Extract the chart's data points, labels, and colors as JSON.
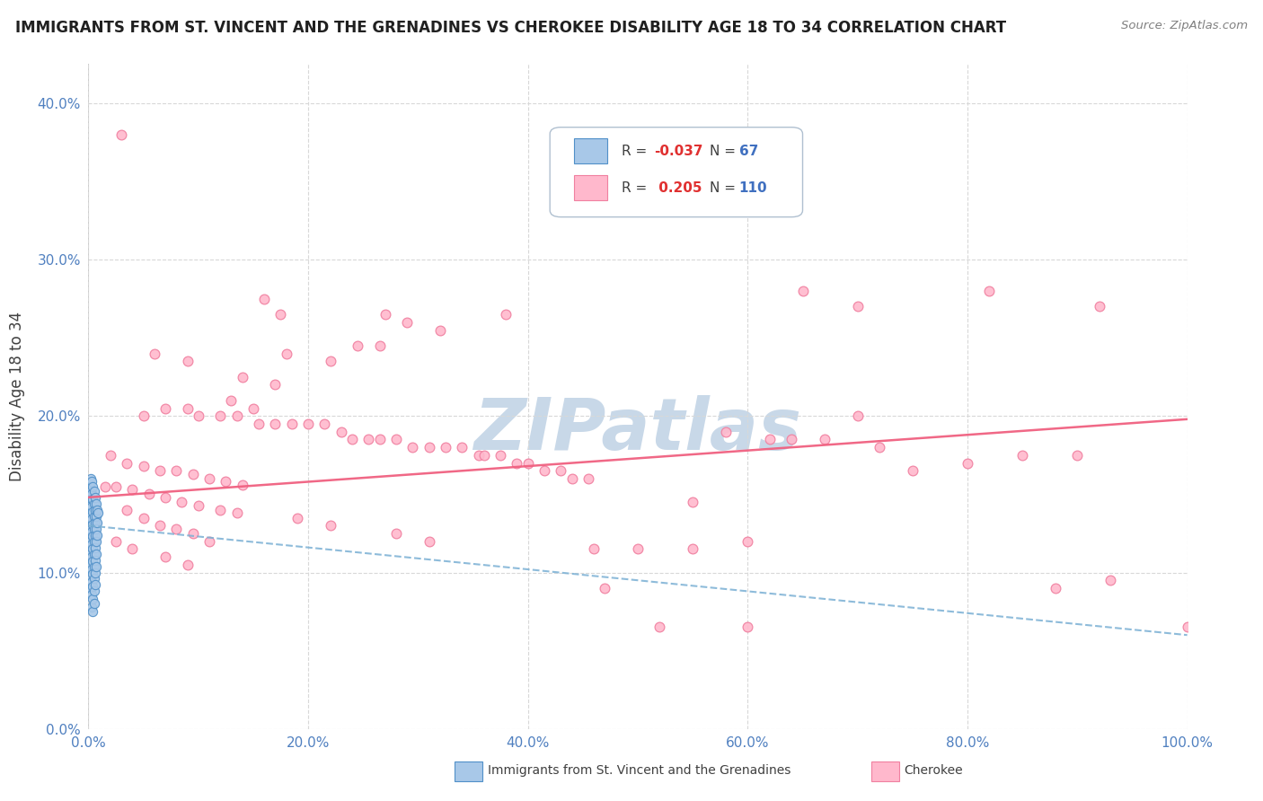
{
  "title": "IMMIGRANTS FROM ST. VINCENT AND THE GRENADINES VS CHEROKEE DISABILITY AGE 18 TO 34 CORRELATION CHART",
  "source": "Source: ZipAtlas.com",
  "ylabel": "Disability Age 18 to 34",
  "xlim": [
    0.0,
    1.0
  ],
  "ylim": [
    0.0,
    0.425
  ],
  "xticks": [
    0.0,
    0.2,
    0.4,
    0.6,
    0.8,
    1.0
  ],
  "yticks": [
    0.0,
    0.1,
    0.2,
    0.3,
    0.4
  ],
  "xtick_labels": [
    "0.0%",
    "20.0%",
    "40.0%",
    "60.0%",
    "80.0%",
    "100.0%"
  ],
  "ytick_labels": [
    "0.0%",
    "10.0%",
    "20.0%",
    "30.0%",
    "40.0%"
  ],
  "blue_scatter_color": "#a8c8e8",
  "blue_scatter_edge": "#5090c8",
  "pink_scatter_color": "#ffb8cc",
  "pink_scatter_edge": "#f080a0",
  "blue_line_color": "#7ab0d4",
  "pink_line_color": "#f06080",
  "background_color": "#ffffff",
  "grid_color": "#d8d8d8",
  "watermark_color": "#c8d8e8",
  "title_color": "#202020",
  "source_color": "#808080",
  "tick_color": "#5080c0",
  "ylabel_color": "#404040",
  "legend_R_blue_color": "#e05050",
  "legend_N_blue_color": "#5080c0",
  "legend_R_pink_color": "#e05050",
  "legend_N_pink_color": "#5080c0",
  "blue_points": [
    [
      0.001,
      0.155
    ],
    [
      0.001,
      0.148
    ],
    [
      0.001,
      0.14
    ],
    [
      0.001,
      0.135
    ],
    [
      0.001,
      0.125
    ],
    [
      0.001,
      0.115
    ],
    [
      0.001,
      0.108
    ],
    [
      0.002,
      0.16
    ],
    [
      0.002,
      0.152
    ],
    [
      0.002,
      0.143
    ],
    [
      0.002,
      0.136
    ],
    [
      0.002,
      0.128
    ],
    [
      0.002,
      0.12
    ],
    [
      0.002,
      0.112
    ],
    [
      0.002,
      0.105
    ],
    [
      0.002,
      0.098
    ],
    [
      0.002,
      0.09
    ],
    [
      0.003,
      0.158
    ],
    [
      0.003,
      0.15
    ],
    [
      0.003,
      0.142
    ],
    [
      0.003,
      0.134
    ],
    [
      0.003,
      0.126
    ],
    [
      0.003,
      0.118
    ],
    [
      0.003,
      0.11
    ],
    [
      0.003,
      0.102
    ],
    [
      0.003,
      0.094
    ],
    [
      0.003,
      0.086
    ],
    [
      0.003,
      0.078
    ],
    [
      0.004,
      0.155
    ],
    [
      0.004,
      0.147
    ],
    [
      0.004,
      0.139
    ],
    [
      0.004,
      0.131
    ],
    [
      0.004,
      0.123
    ],
    [
      0.004,
      0.115
    ],
    [
      0.004,
      0.107
    ],
    [
      0.004,
      0.099
    ],
    [
      0.004,
      0.091
    ],
    [
      0.004,
      0.083
    ],
    [
      0.004,
      0.075
    ],
    [
      0.005,
      0.152
    ],
    [
      0.005,
      0.144
    ],
    [
      0.005,
      0.136
    ],
    [
      0.005,
      0.128
    ],
    [
      0.005,
      0.12
    ],
    [
      0.005,
      0.112
    ],
    [
      0.005,
      0.104
    ],
    [
      0.005,
      0.096
    ],
    [
      0.005,
      0.088
    ],
    [
      0.005,
      0.08
    ],
    [
      0.006,
      0.148
    ],
    [
      0.006,
      0.14
    ],
    [
      0.006,
      0.132
    ],
    [
      0.006,
      0.124
    ],
    [
      0.006,
      0.116
    ],
    [
      0.006,
      0.108
    ],
    [
      0.006,
      0.1
    ],
    [
      0.006,
      0.092
    ],
    [
      0.007,
      0.144
    ],
    [
      0.007,
      0.136
    ],
    [
      0.007,
      0.128
    ],
    [
      0.007,
      0.12
    ],
    [
      0.007,
      0.112
    ],
    [
      0.007,
      0.104
    ],
    [
      0.008,
      0.14
    ],
    [
      0.008,
      0.132
    ],
    [
      0.008,
      0.124
    ],
    [
      0.009,
      0.138
    ]
  ],
  "pink_points": [
    [
      0.03,
      0.38
    ],
    [
      0.16,
      0.275
    ],
    [
      0.175,
      0.265
    ],
    [
      0.27,
      0.265
    ],
    [
      0.29,
      0.26
    ],
    [
      0.245,
      0.245
    ],
    [
      0.265,
      0.245
    ],
    [
      0.18,
      0.24
    ],
    [
      0.22,
      0.235
    ],
    [
      0.32,
      0.255
    ],
    [
      0.38,
      0.265
    ],
    [
      0.06,
      0.24
    ],
    [
      0.09,
      0.235
    ],
    [
      0.14,
      0.225
    ],
    [
      0.17,
      0.22
    ],
    [
      0.13,
      0.21
    ],
    [
      0.15,
      0.205
    ],
    [
      0.05,
      0.2
    ],
    [
      0.07,
      0.205
    ],
    [
      0.09,
      0.205
    ],
    [
      0.1,
      0.2
    ],
    [
      0.12,
      0.2
    ],
    [
      0.135,
      0.2
    ],
    [
      0.155,
      0.195
    ],
    [
      0.17,
      0.195
    ],
    [
      0.185,
      0.195
    ],
    [
      0.2,
      0.195
    ],
    [
      0.215,
      0.195
    ],
    [
      0.23,
      0.19
    ],
    [
      0.24,
      0.185
    ],
    [
      0.255,
      0.185
    ],
    [
      0.265,
      0.185
    ],
    [
      0.28,
      0.185
    ],
    [
      0.295,
      0.18
    ],
    [
      0.31,
      0.18
    ],
    [
      0.325,
      0.18
    ],
    [
      0.34,
      0.18
    ],
    [
      0.355,
      0.175
    ],
    [
      0.36,
      0.175
    ],
    [
      0.375,
      0.175
    ],
    [
      0.39,
      0.17
    ],
    [
      0.4,
      0.17
    ],
    [
      0.415,
      0.165
    ],
    [
      0.43,
      0.165
    ],
    [
      0.44,
      0.16
    ],
    [
      0.455,
      0.16
    ],
    [
      0.02,
      0.175
    ],
    [
      0.035,
      0.17
    ],
    [
      0.05,
      0.168
    ],
    [
      0.065,
      0.165
    ],
    [
      0.08,
      0.165
    ],
    [
      0.095,
      0.163
    ],
    [
      0.11,
      0.16
    ],
    [
      0.125,
      0.158
    ],
    [
      0.14,
      0.156
    ],
    [
      0.025,
      0.155
    ],
    [
      0.04,
      0.153
    ],
    [
      0.055,
      0.15
    ],
    [
      0.07,
      0.148
    ],
    [
      0.085,
      0.145
    ],
    [
      0.1,
      0.143
    ],
    [
      0.12,
      0.14
    ],
    [
      0.135,
      0.138
    ],
    [
      0.015,
      0.155
    ],
    [
      0.035,
      0.14
    ],
    [
      0.05,
      0.135
    ],
    [
      0.065,
      0.13
    ],
    [
      0.08,
      0.128
    ],
    [
      0.095,
      0.125
    ],
    [
      0.11,
      0.12
    ],
    [
      0.025,
      0.12
    ],
    [
      0.04,
      0.115
    ],
    [
      0.07,
      0.11
    ],
    [
      0.09,
      0.105
    ],
    [
      0.19,
      0.135
    ],
    [
      0.22,
      0.13
    ],
    [
      0.28,
      0.125
    ],
    [
      0.31,
      0.12
    ],
    [
      0.46,
      0.115
    ],
    [
      0.5,
      0.115
    ],
    [
      0.55,
      0.115
    ],
    [
      0.6,
      0.12
    ],
    [
      0.65,
      0.28
    ],
    [
      0.7,
      0.27
    ],
    [
      0.7,
      0.2
    ],
    [
      0.75,
      0.165
    ],
    [
      0.8,
      0.17
    ],
    [
      0.82,
      0.28
    ],
    [
      0.85,
      0.175
    ],
    [
      0.88,
      0.09
    ],
    [
      0.9,
      0.175
    ],
    [
      0.92,
      0.27
    ],
    [
      0.93,
      0.095
    ],
    [
      1.0,
      0.065
    ],
    [
      0.47,
      0.09
    ],
    [
      0.52,
      0.065
    ],
    [
      0.55,
      0.145
    ],
    [
      0.6,
      0.065
    ],
    [
      0.58,
      0.19
    ],
    [
      0.62,
      0.185
    ],
    [
      0.64,
      0.185
    ],
    [
      0.67,
      0.185
    ],
    [
      0.72,
      0.18
    ]
  ]
}
